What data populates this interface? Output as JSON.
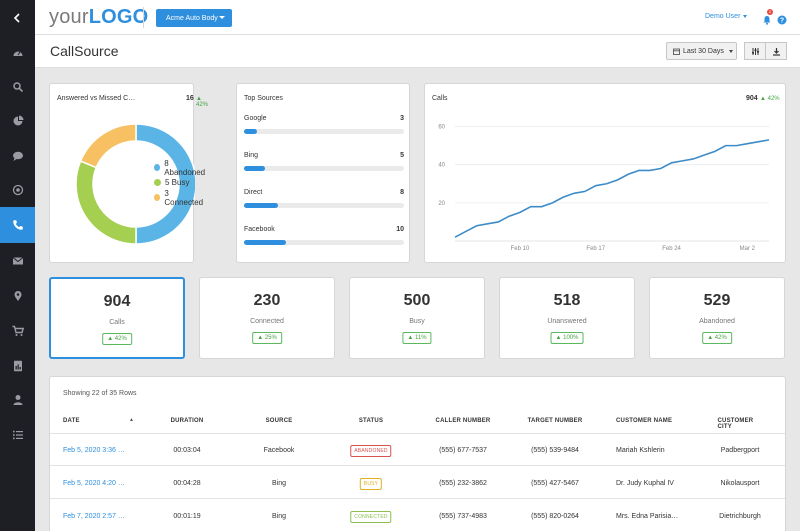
{
  "sidebar": {
    "items": [
      {
        "icon": "chevron-left-icon"
      },
      {
        "icon": "dashboard-icon"
      },
      {
        "icon": "search-icon"
      },
      {
        "icon": "pie-chart-icon"
      },
      {
        "icon": "chat-icon"
      },
      {
        "icon": "target-icon"
      },
      {
        "icon": "phone-icon",
        "active": true
      },
      {
        "icon": "mail-icon"
      },
      {
        "icon": "location-pin-icon"
      },
      {
        "icon": "cart-icon"
      },
      {
        "icon": "report-icon"
      },
      {
        "icon": "user-icon"
      },
      {
        "icon": "list-icon"
      }
    ]
  },
  "header": {
    "logo_light": "your",
    "logo_bold": "LOGO",
    "account": "Acme Auto Body",
    "user": "Demo User",
    "notification_count": "2"
  },
  "subheader": {
    "title": "CallSource",
    "date_range": "Last 30 Days"
  },
  "answered_card": {
    "title": "Answered vs Missed C…",
    "total": "16",
    "delta": "42%",
    "legend": [
      {
        "label": "8 Abandoned",
        "value": 8,
        "color": "#5ab4e5"
      },
      {
        "label": "5 Busy",
        "value": 5,
        "color": "#a5cf50"
      },
      {
        "label": "3 Connected",
        "value": 3,
        "color": "#f7c163"
      }
    ]
  },
  "top_sources": {
    "title": "Top Sources",
    "items": [
      {
        "name": "Google",
        "value": "3",
        "fraction": 0.08
      },
      {
        "name": "Bing",
        "value": "5",
        "fraction": 0.13
      },
      {
        "name": "Direct",
        "value": "8",
        "fraction": 0.21
      },
      {
        "name": "Facebook",
        "value": "10",
        "fraction": 0.26
      }
    ]
  },
  "calls_card": {
    "title": "Calls",
    "total": "904",
    "delta": "42%"
  },
  "chart_data": {
    "type": "line",
    "series": [
      {
        "values": [
          2,
          5,
          8,
          9,
          10,
          13,
          15,
          18,
          18,
          20,
          23,
          25,
          26,
          29,
          30,
          32,
          35,
          37,
          37,
          38,
          41,
          42,
          43,
          45,
          47,
          50,
          50,
          51,
          52,
          53
        ]
      }
    ],
    "x_ticks": [
      "Feb 10",
      "Feb 17",
      "Feb 24",
      "Mar 2"
    ],
    "y_ticks": [
      "20",
      "40",
      "60"
    ],
    "ylim": [
      0,
      65
    ],
    "grid": true,
    "color": "#3d8cc8"
  },
  "stats": [
    {
      "value": "904",
      "label": "Calls",
      "delta": "42%",
      "active": true
    },
    {
      "value": "230",
      "label": "Connected",
      "delta": "25%"
    },
    {
      "value": "500",
      "label": "Busy",
      "delta": "11%"
    },
    {
      "value": "518",
      "label": "Unanswered",
      "delta": "100%"
    },
    {
      "value": "529",
      "label": "Abandoned",
      "delta": "42%"
    }
  ],
  "table": {
    "info": "Showing 22 of 35 Rows",
    "columns": [
      "DATE",
      "DURATION",
      "SOURCE",
      "STATUS",
      "CALLER NUMBER",
      "TARGET NUMBER",
      "CUSTOMER NAME",
      "CUSTOMER CITY"
    ],
    "rows": [
      {
        "date": "Feb 5, 2020 3:36 …",
        "duration": "00:03:04",
        "source": "Facebook",
        "status": "ABANDONED",
        "caller": "(555) 677-7537",
        "target": "(555) 539-9484",
        "name": "Mariah Kshlerin",
        "city": "Padbergport"
      },
      {
        "date": "Feb 5, 2020 4:20 …",
        "duration": "00:04:28",
        "source": "Bing",
        "status": "BUSY",
        "caller": "(555) 232-3862",
        "target": "(555) 427-5467",
        "name": "Dr. Judy Kuphal IV",
        "city": "Nikolausport"
      },
      {
        "date": "Feb 7, 2020 2:57 …",
        "duration": "00:01:19",
        "source": "Bing",
        "status": "CONNECTED",
        "caller": "(555) 737-4983",
        "target": "(555) 820-0264",
        "name": "Mrs. Edna Parisia…",
        "city": "Dietrichburgh"
      }
    ],
    "status_colors": {
      "ABANDONED": "#d9534f",
      "BUSY": "#e0b020",
      "CONNECTED": "#8cc152"
    }
  }
}
